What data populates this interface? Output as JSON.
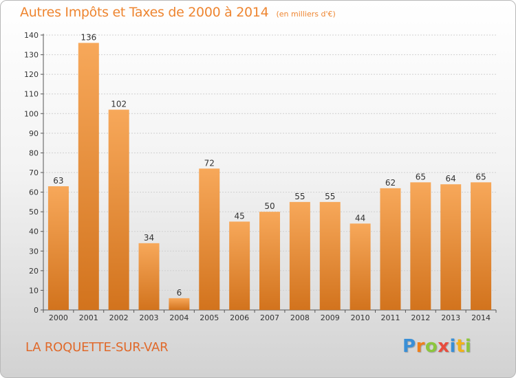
{
  "header": {
    "title": "Autres Impôts et Taxes de 2000 à 2014",
    "subtitle": "(en milliers d'€)"
  },
  "footer": {
    "location": "LA ROQUETTE-SUR-VAR",
    "logo_text": "Proxiti",
    "logo_letters": [
      {
        "char": "P",
        "color": "#3a8fd6"
      },
      {
        "char": "r",
        "color": "#ef7f1a"
      },
      {
        "char": "o",
        "color": "#8cc63e"
      },
      {
        "char": "x",
        "color": "#e84c3d"
      },
      {
        "char": "i",
        "color": "#3a8fd6"
      },
      {
        "char": "t",
        "color": "#f2b21b"
      },
      {
        "char": "i",
        "color": "#8cc63e"
      }
    ]
  },
  "colors": {
    "accent": "#ee8530",
    "bar_light": "#f7a85a",
    "bar_dark": "#d2731d",
    "axis": "#555555",
    "grid": "#cfcfcf"
  },
  "chart_data": {
    "type": "bar",
    "title": "Autres Impôts et Taxes de 2000 à 2014",
    "subtitle": "(en milliers d'€)",
    "xlabel": "",
    "ylabel": "",
    "categories": [
      "2000",
      "2001",
      "2002",
      "2003",
      "2004",
      "2005",
      "2006",
      "2007",
      "2008",
      "2009",
      "2010",
      "2011",
      "2012",
      "2013",
      "2014"
    ],
    "values": [
      63,
      136,
      102,
      34,
      6,
      72,
      45,
      50,
      55,
      55,
      44,
      62,
      65,
      64,
      65
    ],
    "ylim": [
      0,
      140
    ],
    "yticks": [
      0,
      10,
      20,
      30,
      40,
      50,
      60,
      70,
      80,
      90,
      100,
      110,
      120,
      130,
      140
    ],
    "grid": true,
    "legend": "none"
  }
}
